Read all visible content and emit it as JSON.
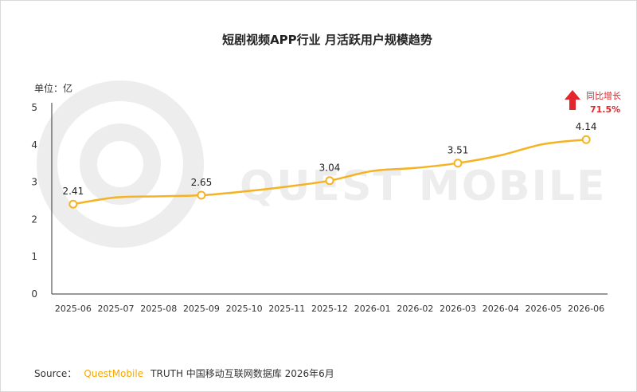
{
  "chart_data": {
    "type": "line",
    "title": "短剧视频APP行业 月活跃用户规模趋势",
    "unit_label": "单位：亿",
    "categories": [
      "2025-06",
      "2025-07",
      "2025-08",
      "2025-09",
      "2025-10",
      "2025-11",
      "2025-12",
      "2026-01",
      "2026-02",
      "2026-03",
      "2026-04",
      "2026-05",
      "2026-06"
    ],
    "values": [
      2.41,
      2.59,
      2.62,
      2.65,
      2.75,
      2.88,
      3.04,
      3.3,
      3.38,
      3.51,
      3.72,
      4.02,
      4.14
    ],
    "labeled_points": [
      {
        "category": "2025-06",
        "value": 2.41,
        "label": "2.41"
      },
      {
        "category": "2025-09",
        "value": 2.65,
        "label": "2.65"
      },
      {
        "category": "2025-12",
        "value": 3.04,
        "label": "3.04"
      },
      {
        "category": "2026-03",
        "value": 3.51,
        "label": "3.51"
      },
      {
        "category": "2026-06",
        "value": 4.14,
        "label": "4.14"
      }
    ],
    "ylim": [
      0,
      5
    ],
    "yticks": [
      "0",
      "1",
      "2",
      "3",
      "4",
      "5"
    ],
    "series_color": "#f5b324",
    "grid": false,
    "annotation": {
      "label": "同比增长",
      "value": "71.5%",
      "color": "#e3262b"
    }
  },
  "watermark": "QUEST MOBILE",
  "source": {
    "prefix": "Source：",
    "brand": "QuestMobile",
    "rest": "TRUTH 中国移动互联网数据库 2026年6月"
  }
}
